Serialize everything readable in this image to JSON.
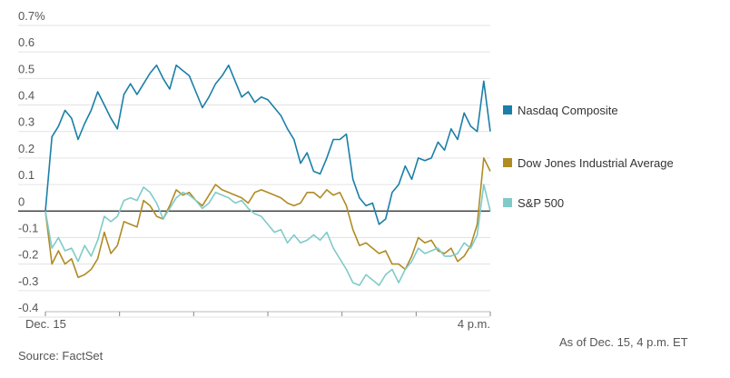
{
  "chart_data": {
    "type": "line",
    "title": "",
    "xlabel": "",
    "ylabel": "",
    "x_ticks": [
      "Dec. 15",
      "",
      "",
      "",
      "",
      "",
      "4 p.m."
    ],
    "y_ticks": [
      "0.7%",
      "0.6",
      "0.5",
      "0.4",
      "0.3",
      "0.2",
      "0.1",
      "0",
      "-0.1",
      "-0.2",
      "-0.3",
      "-0.4"
    ],
    "ylim": [
      -0.4,
      0.7
    ],
    "grid": true,
    "legend_position": "right",
    "series": [
      {
        "name": "Nasdaq Composite",
        "color": "#1a7fa8",
        "values": [
          0.0,
          0.28,
          0.32,
          0.38,
          0.35,
          0.27,
          0.33,
          0.38,
          0.45,
          0.4,
          0.35,
          0.31,
          0.44,
          0.48,
          0.44,
          0.48,
          0.52,
          0.55,
          0.5,
          0.46,
          0.55,
          0.53,
          0.51,
          0.45,
          0.39,
          0.43,
          0.48,
          0.51,
          0.55,
          0.49,
          0.43,
          0.45,
          0.41,
          0.43,
          0.42,
          0.39,
          0.36,
          0.31,
          0.27,
          0.18,
          0.22,
          0.15,
          0.14,
          0.2,
          0.27,
          0.27,
          0.29,
          0.12,
          0.05,
          0.02,
          0.03,
          -0.05,
          -0.03,
          0.07,
          0.1,
          0.17,
          0.12,
          0.2,
          0.19,
          0.2,
          0.26,
          0.23,
          0.31,
          0.27,
          0.37,
          0.32,
          0.3,
          0.49,
          0.3
        ]
      },
      {
        "name": "Dow Jones Industrial Average",
        "color": "#b08b24",
        "values": [
          0.0,
          -0.2,
          -0.15,
          -0.2,
          -0.18,
          -0.25,
          -0.24,
          -0.22,
          -0.18,
          -0.08,
          -0.16,
          -0.13,
          -0.04,
          -0.05,
          -0.06,
          0.04,
          0.02,
          -0.02,
          -0.03,
          0.02,
          0.08,
          0.06,
          0.07,
          0.04,
          0.02,
          0.06,
          0.1,
          0.08,
          0.07,
          0.06,
          0.05,
          0.03,
          0.07,
          0.08,
          0.07,
          0.06,
          0.05,
          0.03,
          0.02,
          0.03,
          0.07,
          0.07,
          0.05,
          0.08,
          0.06,
          0.07,
          0.02,
          -0.07,
          -0.13,
          -0.12,
          -0.14,
          -0.16,
          -0.15,
          -0.2,
          -0.2,
          -0.22,
          -0.17,
          -0.1,
          -0.12,
          -0.11,
          -0.15,
          -0.16,
          -0.14,
          -0.19,
          -0.17,
          -0.13,
          -0.05,
          0.2,
          0.15
        ]
      },
      {
        "name": "S&P 500",
        "color": "#7fcbc8",
        "values": [
          0.0,
          -0.14,
          -0.1,
          -0.15,
          -0.14,
          -0.19,
          -0.13,
          -0.17,
          -0.11,
          -0.02,
          -0.04,
          -0.02,
          0.04,
          0.05,
          0.04,
          0.09,
          0.07,
          0.03,
          -0.03,
          0.01,
          0.05,
          0.07,
          0.06,
          0.04,
          0.01,
          0.03,
          0.07,
          0.06,
          0.05,
          0.03,
          0.04,
          0.01,
          -0.01,
          -0.02,
          -0.05,
          -0.08,
          -0.07,
          -0.12,
          -0.09,
          -0.12,
          -0.11,
          -0.09,
          -0.11,
          -0.08,
          -0.14,
          -0.18,
          -0.22,
          -0.27,
          -0.28,
          -0.24,
          -0.26,
          -0.28,
          -0.24,
          -0.22,
          -0.27,
          -0.22,
          -0.19,
          -0.14,
          -0.16,
          -0.15,
          -0.14,
          -0.17,
          -0.17,
          -0.16,
          -0.12,
          -0.14,
          -0.09,
          0.1,
          0.0
        ]
      }
    ]
  },
  "footer": {
    "source": "Source: FactSet",
    "as_of": "As of Dec. 15, 4 p.m. ET"
  }
}
